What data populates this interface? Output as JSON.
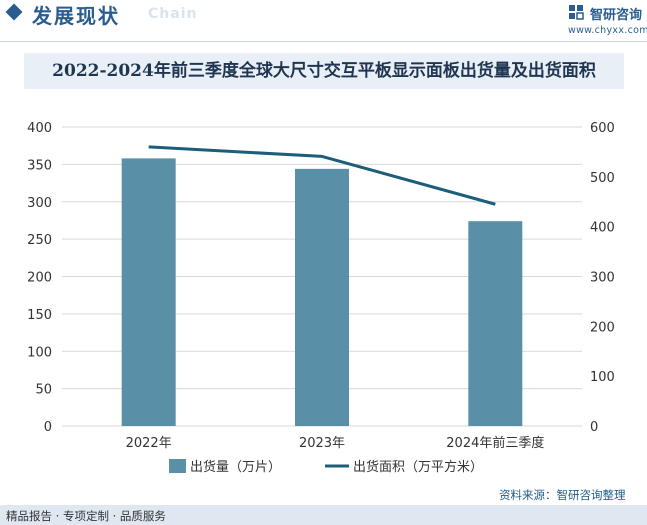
{
  "header": {
    "title": "发展现状",
    "watermark": "Chain",
    "brand_name": "智研咨询",
    "brand_url": "www.chyxx.com",
    "accent_color": "#2a5d8f"
  },
  "chart_title": "2022-2024年前三季度全球大尺寸交互平板显示面板出货量及出货面积",
  "chart_data": {
    "type": "bar",
    "categories": [
      "2022年",
      "2023年",
      "2024年前三季度"
    ],
    "series": [
      {
        "name": "出货量（万片）",
        "type": "bar",
        "axis": "left",
        "values": [
          358,
          344,
          274
        ],
        "color": "#5a8fa8"
      },
      {
        "name": "出货面积（万平方米）",
        "type": "line",
        "axis": "right",
        "values": [
          560,
          541,
          445
        ],
        "color": "#1b5e7a"
      }
    ],
    "y_left": {
      "min": 0,
      "max": 400,
      "ticks": [
        0,
        50,
        100,
        150,
        200,
        250,
        300,
        350,
        400
      ]
    },
    "y_right": {
      "min": 0,
      "max": 600,
      "ticks": [
        0,
        100,
        200,
        300,
        400,
        500,
        600
      ]
    },
    "grid": true,
    "legend_position": "bottom"
  },
  "footer": {
    "left_text": "精品报告 · 专项定制 · 品质服务",
    "source_text": "资料来源：智研咨询整理"
  }
}
